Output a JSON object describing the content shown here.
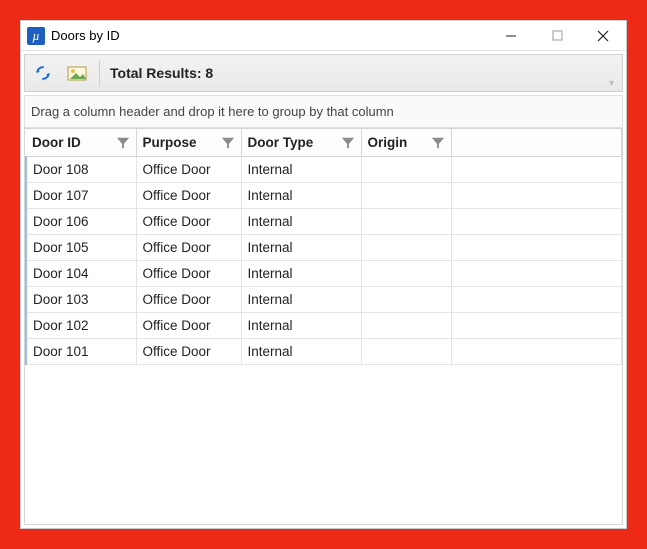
{
  "window": {
    "title": "Doors by ID",
    "icon_glyph": "µ"
  },
  "toolbar": {
    "total_label": "Total Results: 8"
  },
  "group_hint": "Drag a column header and drop it here to group by that column",
  "columns": {
    "c0": "Door ID",
    "c1": "Purpose",
    "c2": "Door Type",
    "c3": "Origin"
  },
  "rows": [
    {
      "id": "Door 108",
      "purpose": "Office Door",
      "type": "Internal",
      "origin": ""
    },
    {
      "id": "Door 107",
      "purpose": "Office Door",
      "type": "Internal",
      "origin": ""
    },
    {
      "id": "Door 106",
      "purpose": "Office Door",
      "type": "Internal",
      "origin": ""
    },
    {
      "id": "Door 105",
      "purpose": "Office Door",
      "type": "Internal",
      "origin": ""
    },
    {
      "id": "Door 104",
      "purpose": "Office Door",
      "type": "Internal",
      "origin": ""
    },
    {
      "id": "Door 103",
      "purpose": "Office Door",
      "type": "Internal",
      "origin": ""
    },
    {
      "id": "Door 102",
      "purpose": "Office Door",
      "type": "Internal",
      "origin": ""
    },
    {
      "id": "Door 101",
      "purpose": "Office Door",
      "type": "Internal",
      "origin": ""
    }
  ],
  "colors": {
    "page_bg": "#ec2a16",
    "accent": "#1d5fbf",
    "row_marker": "#9bbce6"
  }
}
